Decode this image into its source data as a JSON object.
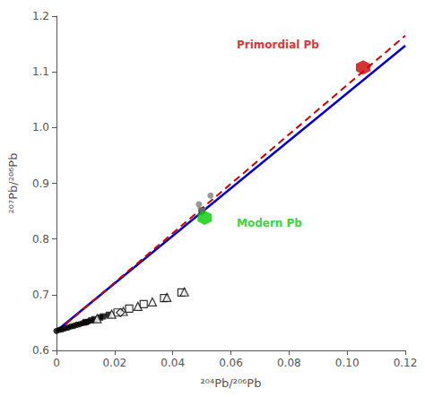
{
  "chart_data": {
    "type": "scatter",
    "xlabel": "²⁰⁴Pb/²⁰⁶Pb",
    "ylabel": "²⁰⁷Pb/²⁰⁶Pb",
    "xlim": [
      0,
      0.12
    ],
    "ylim": [
      0.6,
      1.2
    ],
    "xticks": [
      0,
      0.02,
      0.04,
      0.06,
      0.08,
      {
        "value": 0.1,
        "label": "0.10"
      },
      0.12
    ],
    "yticks": [
      0.6,
      0.7,
      0.8,
      0.9,
      {
        "value": 1.0,
        "label": "1.0"
      },
      1.1,
      1.2
    ],
    "grid": false,
    "series": [
      {
        "type": "line",
        "color": "#0000CC",
        "line_style": "solid",
        "x": [
          0,
          0.12
        ],
        "values": [
          0.635,
          1.147
        ]
      },
      {
        "type": "line",
        "color": "#CC0000",
        "line_style": "dashed",
        "x": [
          0,
          0.12
        ],
        "values": [
          0.633,
          1.165
        ]
      },
      {
        "type": "scatter",
        "marker": "circle",
        "color": "black",
        "x": [
          0.0,
          0.001,
          0.002,
          0.003,
          0.004,
          0.005,
          0.006,
          0.007,
          0.008,
          0.009,
          0.01,
          0.011
        ],
        "values": [
          0.635,
          0.637,
          0.638,
          0.64,
          0.641,
          0.643,
          0.644,
          0.646,
          0.647,
          0.649,
          0.65,
          0.652
        ]
      },
      {
        "type": "scatter",
        "marker": "square",
        "color": "black",
        "x": [
          0.01,
          0.012,
          0.013,
          0.015,
          0.016,
          0.018
        ],
        "values": [
          0.651,
          0.654,
          0.656,
          0.659,
          0.661,
          0.664
        ]
      },
      {
        "type": "scatter",
        "marker": "square",
        "color": "black",
        "x": [
          0.05
        ],
        "values": [
          0.851
        ]
      },
      {
        "type": "scatter",
        "marker": "open_square",
        "color": "black",
        "x": [
          0.021,
          0.025,
          0.03,
          0.037,
          0.043
        ],
        "values": [
          0.668,
          0.675,
          0.683,
          0.694,
          0.704
        ]
      },
      {
        "type": "scatter",
        "marker": "open_triangle_up",
        "color": "black",
        "x": [
          0.014,
          0.019,
          0.023,
          0.028,
          0.033,
          0.038,
          0.044
        ],
        "values": [
          0.657,
          0.665,
          0.67,
          0.679,
          0.687,
          0.695,
          0.705
        ]
      },
      {
        "type": "scatter",
        "marker": "open_diamond",
        "color": "black",
        "x": [
          0.022
        ],
        "values": [
          0.668
        ]
      },
      {
        "type": "scatter",
        "marker": "triangle_down",
        "color": "gray",
        "x": [
          0.05
        ],
        "values": [
          0.848
        ]
      },
      {
        "type": "scatter",
        "marker": "circle",
        "color": "gray",
        "x": [
          0.049,
          0.053
        ],
        "values": [
          0.862,
          0.878
        ]
      },
      {
        "type": "scatter",
        "marker": "hexagon",
        "color": "#00CC00",
        "x": [
          0.051
        ],
        "values": [
          0.838
        ]
      },
      {
        "type": "scatter",
        "marker": "hexagon",
        "color": "#CC0000",
        "x": [
          0.1055
        ],
        "values": [
          1.108
        ]
      }
    ],
    "annotations": [
      {
        "text": "Modern Pb",
        "x": 0.062,
        "y": 0.828,
        "color": "#00CC00"
      },
      {
        "text": "Primordial Pb",
        "x": 0.062,
        "y": 1.148,
        "color": "#CC0000"
      }
    ]
  }
}
